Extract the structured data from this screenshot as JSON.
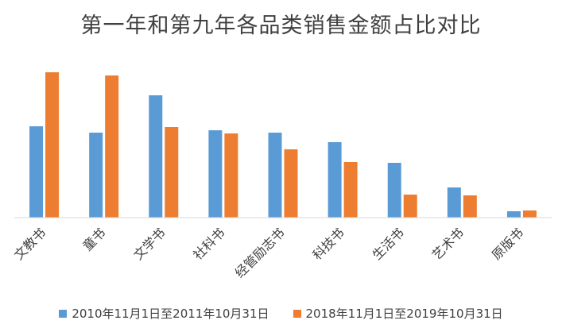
{
  "chart_data": {
    "type": "bar",
    "title": "第一年和第九年各品类销售金额占比对比",
    "xlabel": "",
    "ylabel": "",
    "categories": [
      "文教书",
      "童书",
      "文学书",
      "社科书",
      "经管励志书",
      "科技书",
      "生活书",
      "艺术书",
      "原版书"
    ],
    "series": [
      {
        "name": "2010年11月1日至2011年10月31日",
        "color": "#5B9BD5",
        "values": [
          115,
          107,
          154,
          110,
          107,
          95,
          69,
          38,
          8
        ]
      },
      {
        "name": "2018年11月1日至2019年10月31日",
        "color": "#ED7D31",
        "values": [
          183,
          179,
          114,
          106,
          86,
          70,
          29,
          28,
          9
        ]
      }
    ],
    "ylim": [
      0,
      200
    ],
    "grid": false,
    "legend_position": "bottom"
  }
}
